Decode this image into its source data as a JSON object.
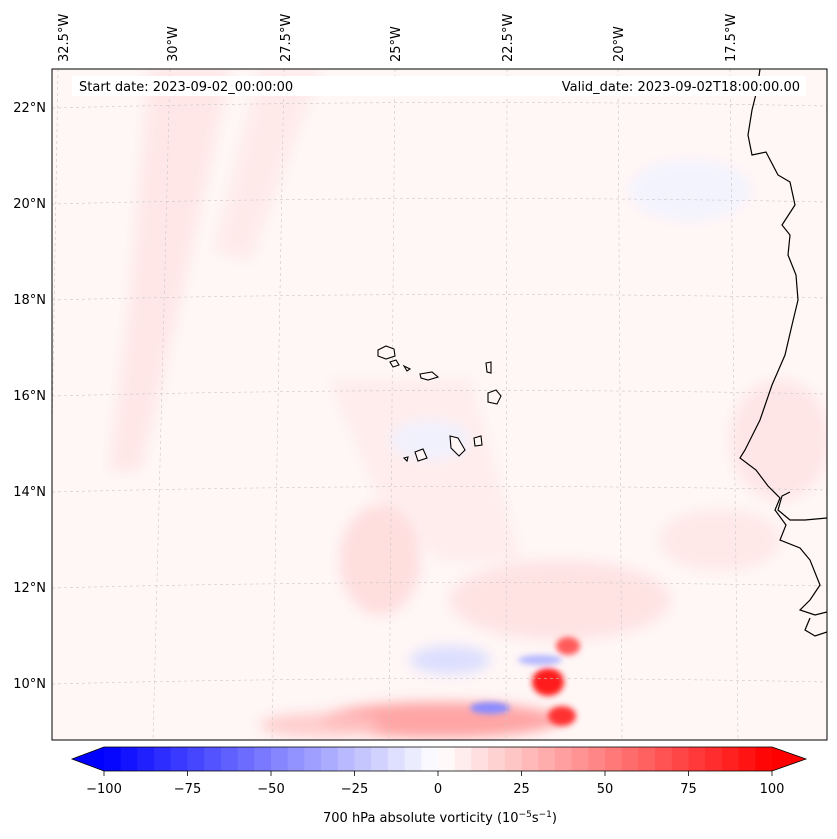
{
  "header": {
    "start_date": "Start date: 2023-09-02_00:00:00",
    "valid_date": "Valid_date: 2023-09-02T18:00:00.00"
  },
  "longitude_labels": [
    "32.5°W",
    "30°W",
    "27.5°W",
    "25°W",
    "22.5°W",
    "20°W",
    "17.5°W"
  ],
  "latitude_labels": [
    "22°N",
    "20°N",
    "18°N",
    "16°N",
    "14°N",
    "12°N",
    "10°N"
  ],
  "colorbar": {
    "title": "700 hPa absolute vorticity (10",
    "exp1": "−5",
    "mid": "s",
    "exp2": "−1",
    "close": ")",
    "tick_labels": [
      "−100",
      "−75",
      "−50",
      "−25",
      "0",
      "25",
      "50",
      "75",
      "100"
    ],
    "range": [
      -100,
      100
    ],
    "neg_color": "#0000ff",
    "pos_color": "#ff0000"
  },
  "colors": {
    "background": "#fff6f6",
    "coast": "#000000",
    "grid": "#c8c8c8"
  }
}
